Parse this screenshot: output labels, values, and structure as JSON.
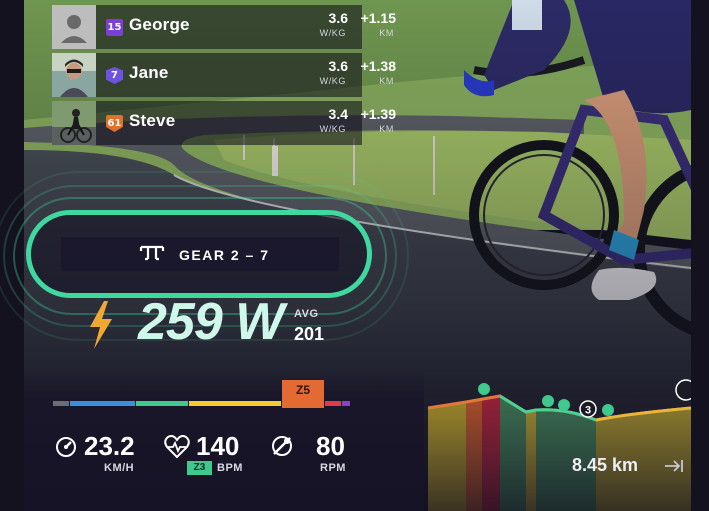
{
  "riders": [
    {
      "level": "15",
      "level_color": "#7b3fd8",
      "name": "George",
      "wkg": "3.6",
      "wkg_unit": "W/KG",
      "gap": "+1.15",
      "gap_unit": "KM"
    },
    {
      "level": "7",
      "level_color": "#6e52e0",
      "name": "Jane",
      "wkg": "3.6",
      "wkg_unit": "W/KG",
      "gap": "+1.38",
      "gap_unit": "KM"
    },
    {
      "level": "61",
      "level_color": "#e2702d",
      "name": "Steve",
      "wkg": "3.4",
      "wkg_unit": "W/KG",
      "gap": "+1.39",
      "gap_unit": "KM"
    }
  ],
  "gear": {
    "label": "GEAR  2 – 7",
    "icon": "gear-shifter-icon",
    "accent": "#3fd9a0"
  },
  "power": {
    "value": "259 W",
    "avg_label": "AVG",
    "avg_value": "201",
    "icon": "lightning-bolt-icon",
    "color": "#f0a830"
  },
  "zone": {
    "label": "Z5",
    "current_color": "#e36a33",
    "colors": [
      "#6c6c74",
      "#3b8fe0",
      "#3fc98d",
      "#f2cc2f",
      "#e36a33",
      "#e03a4e",
      "#8a40c9"
    ]
  },
  "metrics": {
    "speed": {
      "value": "23.2",
      "unit": "KM/H",
      "icon": "speedometer-icon"
    },
    "heart_rate": {
      "value": "140",
      "unit": "BPM",
      "zone": "Z3",
      "icon": "heart-rate-icon"
    },
    "cadence": {
      "value": "80",
      "unit": "RPM",
      "icon": "cadence-icon"
    }
  },
  "elevation": {
    "distance": "8.45 km",
    "rider_count_marker": "3",
    "icon": "finish-arrow-icon"
  }
}
